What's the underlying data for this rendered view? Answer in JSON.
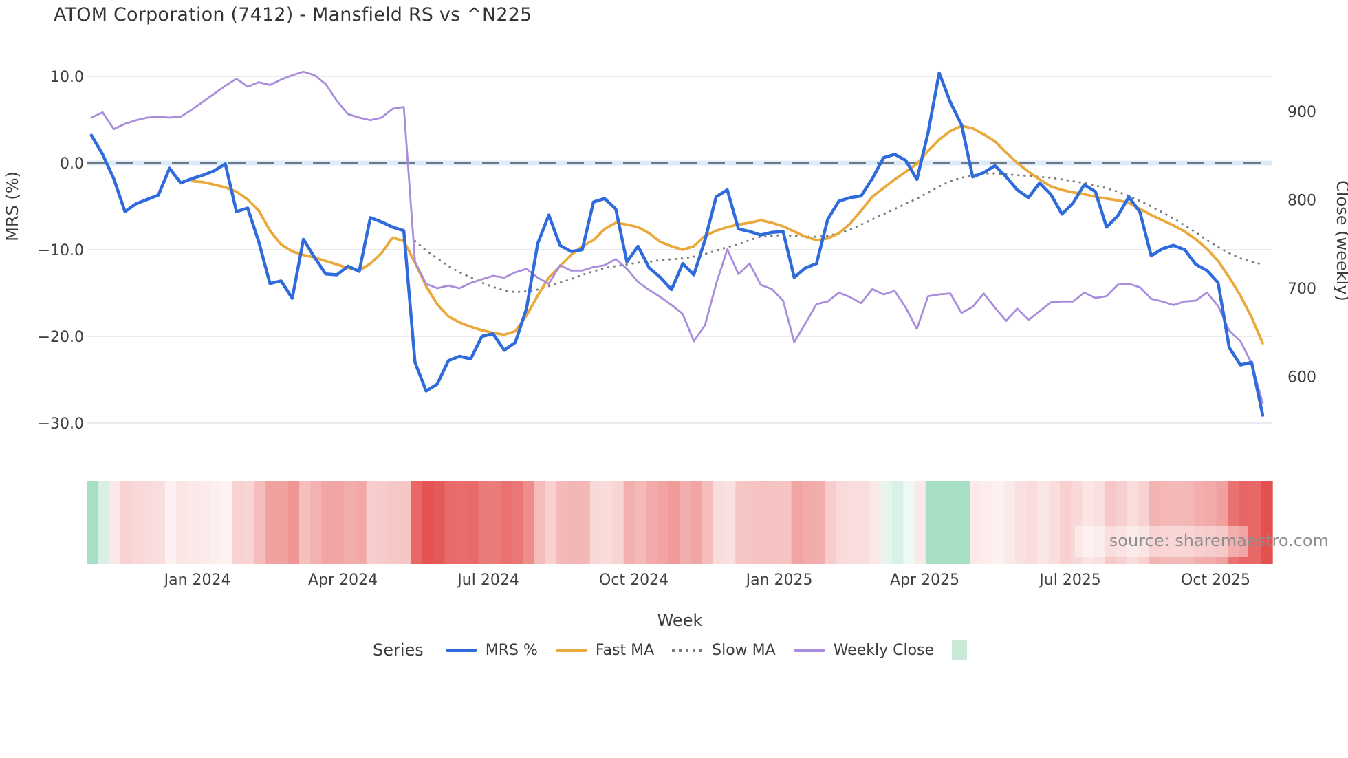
{
  "title": "ATOM Corporation (7412) - Mansfield RS vs ^N225",
  "source_note": "source: sharemaestro.com",
  "axes": {
    "x_label": "Week",
    "left_label": "MRS (%)",
    "right_label": "Close (weekly)",
    "left_ticks": [
      {
        "label": "10.0",
        "value": 10
      },
      {
        "label": "0.0",
        "value": 0
      },
      {
        "label": "−10.0",
        "value": -10
      },
      {
        "label": "−20.0",
        "value": -20
      },
      {
        "label": "−30.0",
        "value": -30
      }
    ],
    "right_ticks": [
      {
        "label": "900",
        "value": 900
      },
      {
        "label": "800",
        "value": 800
      },
      {
        "label": "700",
        "value": 700
      },
      {
        "label": "600",
        "value": 600
      }
    ],
    "x_ticks": [
      {
        "label": "Jan 2024",
        "week": 9.5
      },
      {
        "label": "Apr 2024",
        "week": 22.54
      },
      {
        "label": "Jul 2024",
        "week": 35.58
      },
      {
        "label": "Oct 2024",
        "week": 48.62
      },
      {
        "label": "Jan 2025",
        "week": 61.66
      },
      {
        "label": "Apr 2025",
        "week": 74.7
      },
      {
        "label": "Jul 2025",
        "week": 87.74
      },
      {
        "label": "Oct 2025",
        "week": 100.78
      }
    ]
  },
  "legend": {
    "title": "Series",
    "items": [
      {
        "label": "MRS %",
        "color": "#2f6bdb",
        "style": "solid"
      },
      {
        "label": "Fast MA",
        "color": "#e9a93d",
        "style": "solid"
      },
      {
        "label": "Slow MA",
        "color": "#7c7c7c",
        "style": "dotted"
      },
      {
        "label": "Weekly Close",
        "color": "#a98ddb",
        "style": "solid"
      },
      {
        "label": "",
        "color": "#c9ead9",
        "style": "patch"
      }
    ]
  },
  "chart_data": {
    "type": "line",
    "title": "ATOM Corporation (7412) - Mansfield RS vs ^N225",
    "x_unit": "week",
    "x_start_date": "2023-10-30",
    "x_step_days": 7,
    "n_points": 106,
    "xlabel": "Week",
    "ylabel_left": "MRS (%)",
    "ylabel_right": "Close (weekly)",
    "ylim_left": [
      -30,
      13.2
    ],
    "ylim_right": [
      548,
      971
    ],
    "grid": "horizontal, left axis only",
    "legend_position": "bottom",
    "zero_line": {
      "value": 0,
      "style": "dashed"
    },
    "series": [
      {
        "name": "MRS %",
        "axis": "left",
        "color": "#2f6bdb",
        "style": "solid",
        "width": 4.5,
        "values": [
          3.2,
          1.0,
          -1.8,
          -5.6,
          -4.7,
          -4.2,
          -3.7,
          -0.6,
          -2.3,
          -1.8,
          -1.4,
          -0.9,
          -0.1,
          -5.6,
          -5.2,
          -9.1,
          -13.9,
          -13.6,
          -15.6,
          -8.8,
          -10.9,
          -12.8,
          -12.9,
          -11.9,
          -12.5,
          -6.3,
          -6.8,
          -7.4,
          -7.8,
          -23.0,
          -26.3,
          -25.5,
          -22.8,
          -22.3,
          -22.6,
          -20.0,
          -19.7,
          -21.6,
          -20.7,
          -16.8,
          -9.3,
          -6.0,
          -9.5,
          -10.2,
          -10.0,
          -4.5,
          -4.1,
          -5.3,
          -11.4,
          -9.6,
          -12.1,
          -13.2,
          -14.6,
          -11.6,
          -12.9,
          -8.9,
          -3.9,
          -3.1,
          -7.6,
          -7.9,
          -8.3,
          -8.0,
          -7.9,
          -13.2,
          -12.1,
          -11.6,
          -6.5,
          -4.4,
          -4.0,
          -3.8,
          -1.8,
          0.6,
          1.0,
          0.3,
          -1.9,
          3.5,
          10.4,
          7.0,
          4.4,
          -1.6,
          -1.1,
          -0.3,
          -1.6,
          -3.1,
          -4.0,
          -2.3,
          -3.6,
          -5.9,
          -4.6,
          -2.5,
          -3.3,
          -7.4,
          -6.1,
          -3.9,
          -5.7,
          -10.7,
          -9.9,
          -9.5,
          -10.0,
          -11.7,
          -12.4,
          -13.8,
          -21.3,
          -23.3,
          -23.0,
          -29.1
        ]
      },
      {
        "name": "Fast MA",
        "axis": "left",
        "color": "#e9a93d",
        "style": "solid",
        "width": 3.8,
        "values": [
          null,
          null,
          null,
          null,
          null,
          null,
          null,
          null,
          null,
          -2.1,
          -2.2,
          -2.5,
          -2.8,
          -3.3,
          -4.2,
          -5.5,
          -7.8,
          -9.4,
          -10.2,
          -10.6,
          -10.9,
          -11.3,
          -11.7,
          -12.1,
          -12.4,
          -11.6,
          -10.4,
          -8.6,
          -9.0,
          -11.5,
          -14.2,
          -16.3,
          -17.7,
          -18.4,
          -18.9,
          -19.3,
          -19.6,
          -19.8,
          -19.4,
          -17.6,
          -15.3,
          -13.2,
          -11.9,
          -10.6,
          -9.6,
          -8.9,
          -7.6,
          -6.9,
          -7.1,
          -7.4,
          -8.1,
          -9.1,
          -9.6,
          -10.0,
          -9.6,
          -8.4,
          -7.8,
          -7.4,
          -7.1,
          -6.9,
          -6.6,
          -6.9,
          -7.3,
          -7.9,
          -8.5,
          -8.9,
          -8.7,
          -8.1,
          -7.0,
          -5.5,
          -3.9,
          -2.9,
          -1.9,
          -1.0,
          -0.1,
          1.4,
          2.7,
          3.7,
          4.3,
          4.0,
          3.3,
          2.5,
          1.2,
          0.0,
          -1.0,
          -1.9,
          -2.7,
          -3.1,
          -3.4,
          -3.6,
          -3.9,
          -4.1,
          -4.3,
          -4.6,
          -5.3,
          -6.0,
          -6.6,
          -7.2,
          -7.9,
          -8.8,
          -9.9,
          -11.3,
          -13.2,
          -15.3,
          -17.8,
          -20.8
        ]
      },
      {
        "name": "Slow MA",
        "axis": "left",
        "color": "#7c7c7c",
        "style": "dotted",
        "width": 3,
        "values": [
          null,
          null,
          null,
          null,
          null,
          null,
          null,
          null,
          null,
          null,
          null,
          null,
          null,
          null,
          null,
          null,
          null,
          null,
          null,
          null,
          null,
          null,
          null,
          null,
          null,
          null,
          null,
          null,
          null,
          -9.0,
          -10.1,
          -11.0,
          -11.9,
          -12.6,
          -13.2,
          -13.8,
          -14.3,
          -14.7,
          -14.9,
          -14.8,
          -14.6,
          -14.2,
          -13.8,
          -13.4,
          -12.9,
          -12.5,
          -12.1,
          -11.9,
          -11.7,
          -11.5,
          -11.4,
          -11.2,
          -11.1,
          -11.0,
          -10.8,
          -10.5,
          -10.1,
          -9.7,
          -9.4,
          -8.9,
          -8.5,
          -8.4,
          -8.3,
          -8.4,
          -8.5,
          -8.5,
          -8.4,
          -8.1,
          -7.7,
          -7.1,
          -6.5,
          -5.9,
          -5.3,
          -4.7,
          -4.1,
          -3.4,
          -2.7,
          -2.1,
          -1.7,
          -1.4,
          -1.2,
          -1.2,
          -1.3,
          -1.4,
          -1.5,
          -1.6,
          -1.7,
          -1.9,
          -2.1,
          -2.3,
          -2.6,
          -2.9,
          -3.3,
          -3.8,
          -4.4,
          -5.0,
          -5.7,
          -6.4,
          -7.2,
          -8.0,
          -8.9,
          -9.7,
          -10.4,
          -11.0,
          -11.4,
          -11.7
        ]
      },
      {
        "name": "Weekly Close",
        "axis": "right",
        "color": "#a98ddb",
        "style": "solid",
        "width": 2.8,
        "values": [
          893,
          899,
          880,
          886,
          890,
          893,
          894,
          893,
          894,
          902,
          911,
          920,
          929,
          937,
          928,
          933,
          930,
          936,
          941,
          945,
          941,
          931,
          912,
          897,
          893,
          890,
          893,
          903,
          905,
          730,
          705,
          700,
          703,
          700,
          706,
          710,
          714,
          712,
          718,
          722,
          712,
          705,
          726,
          720,
          720,
          724,
          726,
          733,
          722,
          707,
          698,
          690,
          681,
          671,
          640,
          658,
          705,
          744,
          716,
          728,
          704,
          699,
          686,
          639,
          660,
          682,
          685,
          695,
          690,
          683,
          699,
          693,
          697,
          678,
          654,
          691,
          693,
          694,
          672,
          679,
          694,
          678,
          663,
          677,
          664,
          674,
          684,
          685,
          685,
          695,
          689,
          691,
          704,
          705,
          701,
          688,
          685,
          681,
          685,
          686,
          695,
          680,
          652,
          640,
          615,
          570
        ]
      }
    ],
    "heatmap_strip": {
      "encodes": "weekly MRS % intensity (green = positive, red = negative)",
      "positive_color": "#a7dfc5",
      "negative_color": "#e4504e",
      "neutral_color": "#fdf4f4",
      "negative_saturation_at": -27,
      "positive_saturation_at": 2.5
    }
  }
}
